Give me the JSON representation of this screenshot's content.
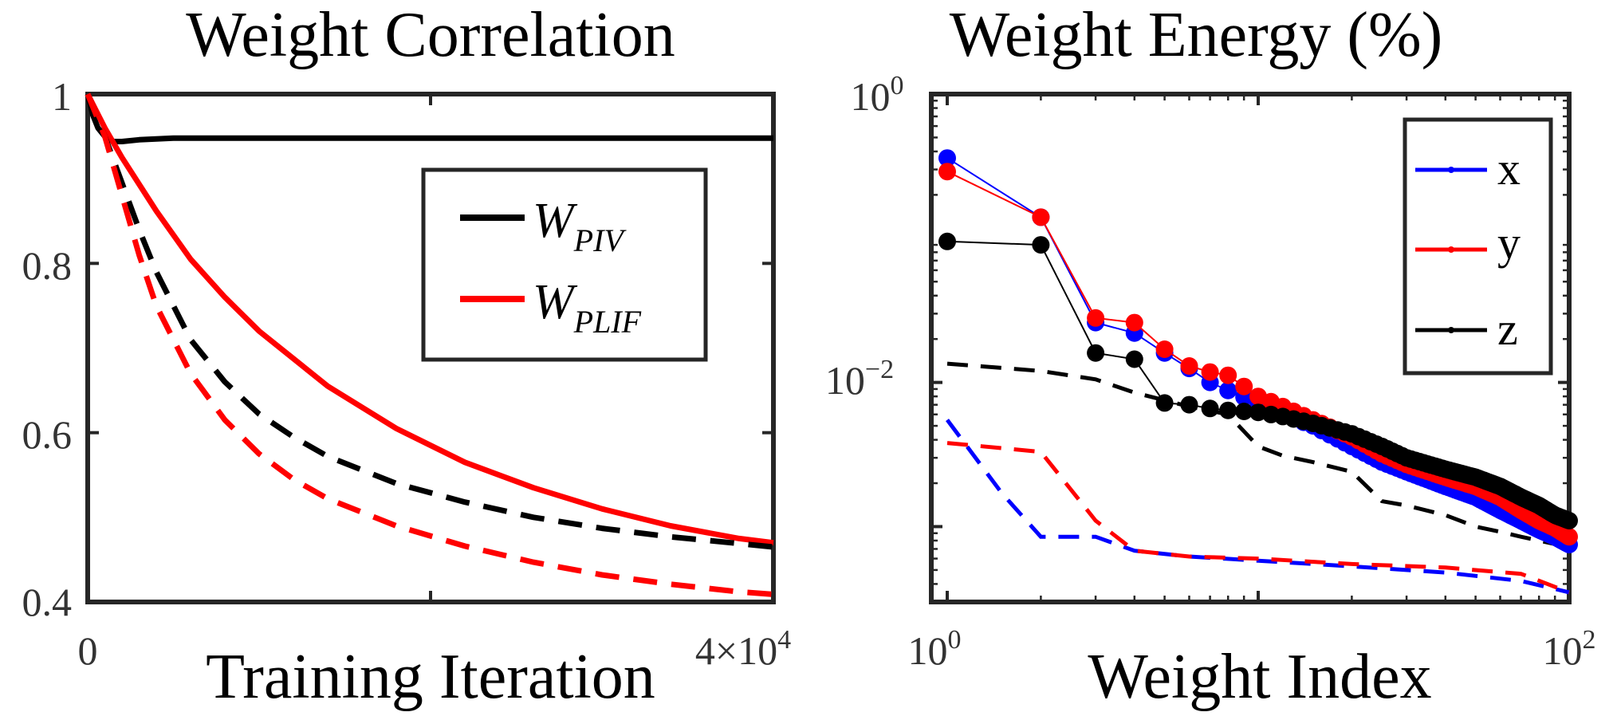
{
  "chart_data": [
    {
      "type": "line",
      "title": "Weight Correlation",
      "xlabel": "Training Iteration",
      "ylabel": "",
      "xlim": [
        0,
        40000
      ],
      "ylim": [
        0.4,
        1
      ],
      "x_ticks": [
        "0",
        "4×10"
      ],
      "x_tick_exponent": "4",
      "y_ticks": [
        "0.4",
        "0.6",
        "0.8",
        "1"
      ],
      "legend": {
        "position": "top-right",
        "entries": [
          {
            "label": "W",
            "subscript": "PIV",
            "color": "#000000"
          },
          {
            "label": "W",
            "subscript": "PLIF",
            "color": "#ff0000"
          }
        ]
      },
      "series": [
        {
          "name": "W_PIV",
          "color": "#000000",
          "style": "solid",
          "x": [
            0,
            300,
            600,
            1000,
            1500,
            2000,
            3000,
            5000,
            10000,
            20000,
            30000,
            40000
          ],
          "y": [
            1.0,
            0.975,
            0.96,
            0.95,
            0.944,
            0.944,
            0.946,
            0.948,
            0.948,
            0.948,
            0.948,
            0.948
          ]
        },
        {
          "name": "W_PLIF",
          "color": "#ff0000",
          "style": "solid",
          "x": [
            0,
            1000,
            2000,
            4000,
            6000,
            8000,
            10000,
            14000,
            18000,
            22000,
            26000,
            30000,
            34000,
            38000,
            40000
          ],
          "y": [
            1.0,
            0.96,
            0.925,
            0.862,
            0.805,
            0.76,
            0.72,
            0.655,
            0.605,
            0.565,
            0.535,
            0.51,
            0.49,
            0.475,
            0.47
          ]
        },
        {
          "color": "#000000",
          "style": "dashed",
          "x": [
            0,
            1000,
            2000,
            3000,
            4000,
            6000,
            8000,
            10000,
            12000,
            14000,
            18000,
            22000,
            26000,
            30000,
            34000,
            38000,
            40000
          ],
          "y": [
            1.0,
            0.95,
            0.895,
            0.84,
            0.79,
            0.71,
            0.66,
            0.622,
            0.595,
            0.572,
            0.54,
            0.518,
            0.5,
            0.487,
            0.477,
            0.469,
            0.465
          ]
        },
        {
          "color": "#ff0000",
          "style": "dashed",
          "x": [
            0,
            1000,
            2000,
            3000,
            4000,
            6000,
            8000,
            10000,
            12000,
            14000,
            18000,
            22000,
            26000,
            30000,
            34000,
            38000,
            40000
          ],
          "y": [
            1.0,
            0.95,
            0.88,
            0.81,
            0.75,
            0.67,
            0.615,
            0.575,
            0.545,
            0.522,
            0.49,
            0.466,
            0.447,
            0.432,
            0.421,
            0.412,
            0.409
          ]
        }
      ]
    },
    {
      "type": "line",
      "title": "Weight Energy (%)",
      "xlabel": "Weight Index",
      "ylabel": "",
      "xscale": "log",
      "yscale": "log",
      "xlim": [
        1,
        100
      ],
      "ylim": [
        0.0003,
        1
      ],
      "x_ticks": [
        {
          "base": "10",
          "exp": "0"
        },
        {
          "base": "10",
          "exp": "2"
        }
      ],
      "y_ticks": [
        {
          "base": "10",
          "exp": "0"
        },
        {
          "base": "10",
          "exp": "−2"
        }
      ],
      "legend": {
        "position": "top-right",
        "entries": [
          {
            "label": "x",
            "color": "#0000ff"
          },
          {
            "label": "y",
            "color": "#ff0000"
          },
          {
            "label": "z",
            "color": "#000000"
          }
        ]
      },
      "series": [
        {
          "name": "x",
          "color": "#0000ff",
          "style": "solid-markers",
          "x": [
            1,
            2,
            3,
            4,
            5,
            6,
            7,
            8,
            10,
            12,
            15,
            20,
            25,
            30,
            40,
            50,
            60,
            70,
            80,
            90,
            100
          ],
          "y": [
            0.36,
            0.14,
            0.026,
            0.022,
            0.016,
            0.0125,
            0.01,
            0.0088,
            0.0072,
            0.006,
            0.005,
            0.0036,
            0.0028,
            0.0024,
            0.0019,
            0.0016,
            0.0013,
            0.0011,
            0.00095,
            0.00085,
            0.00075
          ]
        },
        {
          "name": "y",
          "color": "#ff0000",
          "style": "solid-markers",
          "x": [
            1,
            2,
            3,
            4,
            5,
            6,
            7,
            8,
            10,
            12,
            15,
            20,
            25,
            30,
            40,
            50,
            60,
            70,
            80,
            90,
            100
          ],
          "y": [
            0.29,
            0.14,
            0.028,
            0.026,
            0.017,
            0.013,
            0.0118,
            0.0112,
            0.008,
            0.0068,
            0.0055,
            0.0042,
            0.0032,
            0.0027,
            0.0022,
            0.0019,
            0.0016,
            0.0013,
            0.0011,
            0.00098,
            0.00085
          ]
        },
        {
          "name": "z",
          "color": "#000000",
          "style": "solid-markers",
          "x": [
            1,
            2,
            3,
            4,
            5,
            6,
            7,
            8,
            10,
            12,
            15,
            20,
            25,
            30,
            40,
            50,
            60,
            70,
            80,
            90,
            100
          ],
          "y": [
            0.095,
            0.09,
            0.016,
            0.0145,
            0.0072,
            0.007,
            0.0066,
            0.0064,
            0.0062,
            0.0058,
            0.0052,
            0.0044,
            0.0036,
            0.003,
            0.0025,
            0.0022,
            0.0019,
            0.0016,
            0.0014,
            0.0012,
            0.0011
          ]
        },
        {
          "color": "#0000ff",
          "style": "dashed",
          "x": [
            1,
            1.5,
            2,
            3,
            4,
            6,
            10,
            20,
            40,
            70,
            100
          ],
          "y": [
            0.0055,
            0.0017,
            0.00085,
            0.00085,
            0.00068,
            0.00062,
            0.00058,
            0.00053,
            0.00048,
            0.00042,
            0.00035
          ]
        },
        {
          "color": "#ff0000",
          "style": "dashed",
          "x": [
            1,
            2,
            3,
            4,
            6,
            10,
            20,
            40,
            70,
            100
          ],
          "y": [
            0.0038,
            0.0033,
            0.0011,
            0.00068,
            0.00062,
            0.0006,
            0.00055,
            0.00052,
            0.00047,
            0.00035
          ]
        },
        {
          "color": "#000000",
          "style": "dashed",
          "x": [
            1,
            2,
            3,
            4,
            6,
            8,
            10,
            12,
            15,
            20,
            25,
            30,
            40,
            50,
            60,
            70,
            80,
            100
          ],
          "y": [
            0.0135,
            0.012,
            0.0105,
            0.0085,
            0.0068,
            0.006,
            0.0036,
            0.0031,
            0.0028,
            0.0024,
            0.0015,
            0.0014,
            0.0012,
            0.001,
            0.00092,
            0.00085,
            0.0008,
            0.00072
          ]
        }
      ]
    }
  ]
}
